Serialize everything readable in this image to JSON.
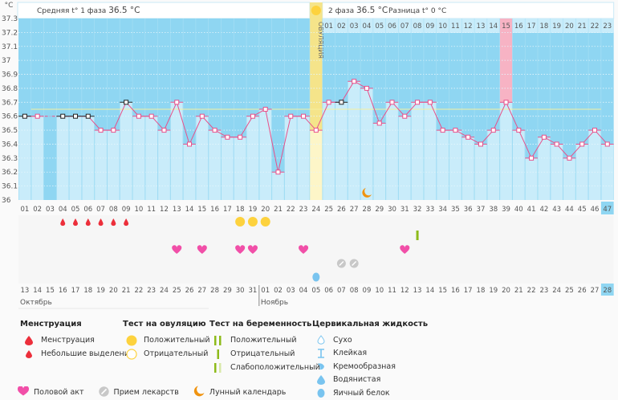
{
  "header": {
    "unit": "°C",
    "phase1_label": "Средняя t° 1 фаза",
    "phase1_value": "36.5 °C",
    "phase2_label": "2 фаза",
    "phase2_value": "36.5 °C",
    "diff_label": "Разница t°",
    "diff_value": "0 °C",
    "ovulation_label": "ОВУЛЯЦИЯ"
  },
  "chart_data": {
    "type": "line",
    "title": "",
    "xlabel": "",
    "ylabel": "°C",
    "ylim": [
      36.0,
      37.3
    ],
    "yticks": [
      "37.3",
      "37.2",
      "37.1",
      "37",
      "36.9",
      "36.8",
      "36.7",
      "36.6",
      "36.5",
      "36.4",
      "36.3",
      "36.2",
      "36.1",
      "36"
    ],
    "cycle_days": [
      "01",
      "02",
      "03",
      "04",
      "05",
      "06",
      "07",
      "08",
      "09",
      "10",
      "11",
      "12",
      "13",
      "14",
      "15",
      "16",
      "17",
      "18",
      "19",
      "20",
      "21",
      "22",
      "23",
      "24",
      "25",
      "26",
      "27",
      "28",
      "29",
      "30",
      "31",
      "32",
      "33",
      "34",
      "35",
      "36",
      "37",
      "38",
      "39",
      "40",
      "41",
      "42",
      "43",
      "44",
      "45",
      "46",
      "47"
    ],
    "temperatures": [
      36.6,
      36.6,
      null,
      36.6,
      36.6,
      36.6,
      36.5,
      36.5,
      36.7,
      36.6,
      36.6,
      36.5,
      36.7,
      36.4,
      36.6,
      36.5,
      36.45,
      36.45,
      36.6,
      36.65,
      36.2,
      36.6,
      36.6,
      36.5,
      36.7,
      36.7,
      36.85,
      36.8,
      36.55,
      36.7,
      36.6,
      36.7,
      36.7,
      36.5,
      36.5,
      36.45,
      36.4,
      36.5,
      36.7,
      36.5,
      36.3,
      36.45,
      36.4,
      36.3,
      36.4,
      36.5,
      36.4
    ],
    "black_marker_days": [
      1,
      4,
      5,
      6,
      9,
      26
    ],
    "coverline": 36.65,
    "ovulation_day": 24,
    "highlight_day": 39,
    "today_day": 47,
    "phase2_day_labels": [
      "01",
      "02",
      "03",
      "04",
      "05",
      "06",
      "07",
      "08",
      "09",
      "10",
      "11",
      "12",
      "13",
      "14",
      "15",
      "16",
      "17",
      "18",
      "19",
      "20",
      "21",
      "22",
      "23"
    ],
    "calendar_dates": [
      "13",
      "14",
      "15",
      "16",
      "17",
      "18",
      "19",
      "20",
      "21",
      "22",
      "23",
      "24",
      "25",
      "26",
      "27",
      "28",
      "29",
      "30",
      "31",
      "01",
      "02",
      "03",
      "04",
      "05",
      "06",
      "07",
      "08",
      "09",
      "10",
      "11",
      "12",
      "13",
      "14",
      "15",
      "16",
      "17",
      "18",
      "19",
      "20",
      "21",
      "22",
      "23",
      "24",
      "25",
      "26",
      "27",
      "28"
    ],
    "weekend_indices": [
      2,
      3,
      9,
      10,
      16,
      17,
      23,
      24,
      30,
      31,
      37,
      38,
      44,
      45
    ],
    "months": [
      {
        "label": "Октябрь",
        "start_index": 0
      },
      {
        "label": "Ноябрь",
        "start_index": 19
      }
    ],
    "events": {
      "menstruation_days": [
        4,
        5,
        6,
        7,
        8,
        9
      ],
      "ovulation_test_positive_days": [
        18,
        19,
        20
      ],
      "pregnancy_test_negative_days": [
        32
      ],
      "intercourse_days": [
        13,
        15,
        18,
        19,
        23,
        31
      ],
      "medication_days": [
        26,
        27
      ],
      "cervical_egg_white_days": [
        24
      ],
      "moon_days": [
        28
      ]
    }
  },
  "legend": {
    "menstruation": {
      "title": "Менструация",
      "items": [
        "Менструация",
        "Небольшие выделения"
      ]
    },
    "ovulation_test": {
      "title": "Тест на овуляцию",
      "items": [
        "Положительный",
        "Отрицательный"
      ]
    },
    "pregnancy_test": {
      "title": "Тест на беременность",
      "items": [
        "Положительный",
        "Отрицательный",
        "Слабоположительный"
      ]
    },
    "cervical": {
      "title": "Цервикальная жидкость",
      "items": [
        "Сухо",
        "Клейкая",
        "Кремообразная",
        "Водянистая",
        "Яичный белок"
      ]
    },
    "bottom": [
      "Половой акт",
      "Прием лекарств",
      "Лунный календарь"
    ]
  },
  "colors": {
    "sky": "#8fd6f2",
    "bar": "#c9ecfa",
    "line": "#e8508a",
    "ovulation": "#f5e48a",
    "highlight": "#f7b3c4",
    "sun": "#fdd23e",
    "heart": "#f14fa8",
    "blood": "#ec2f3b",
    "moon": "#f0930f",
    "egg": "#79c4ef",
    "pill": "#c8c8c8",
    "green": "#8dbb1a",
    "weekend": "#ee3d72"
  }
}
